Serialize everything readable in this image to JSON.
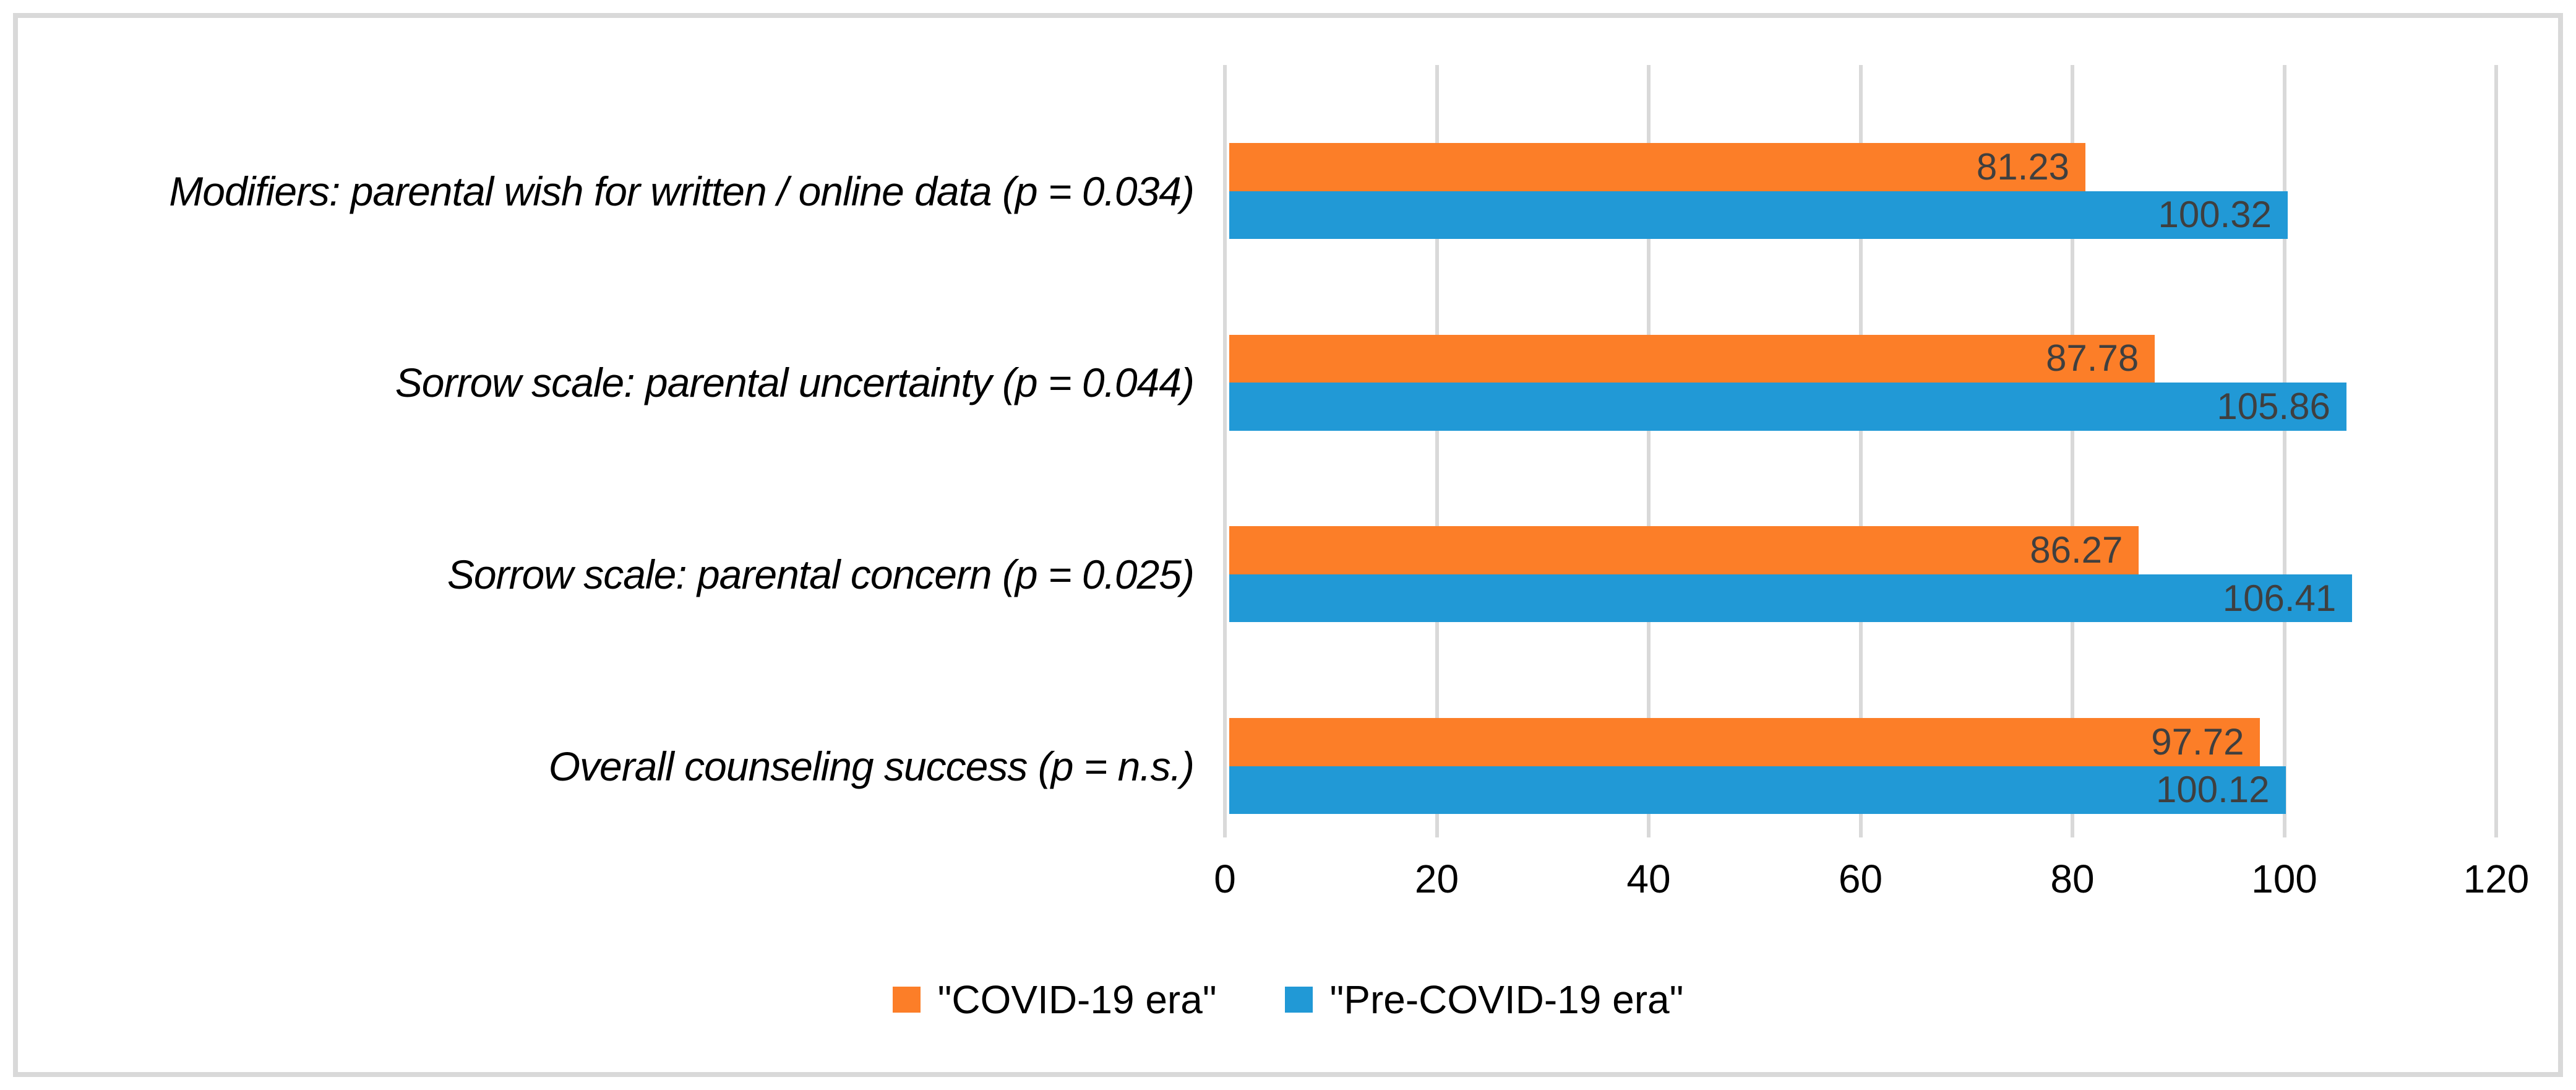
{
  "chart_data": {
    "type": "bar",
    "orientation": "horizontal",
    "title": "",
    "categories": [
      "Modifiers: parental wish for written / online data (p = 0.034)",
      "Sorrow scale: parental uncertainty (p = 0.044)",
      "Sorrow scale: parental concern (p = 0.025)",
      "Overall counseling success (p = n.s.)"
    ],
    "series": [
      {
        "name": "\"COVID-19 era\"",
        "color": "#FC7E28",
        "values": [
          81.23,
          87.78,
          86.27,
          97.72
        ]
      },
      {
        "name": "\"Pre-COVID-19 era\"",
        "color": "#2199D6",
        "values": [
          100.32,
          105.86,
          106.41,
          100.12
        ]
      }
    ],
    "xlim": [
      0,
      120
    ],
    "xticks": [
      0,
      20,
      40,
      60,
      80,
      100,
      120
    ],
    "grid": "vertical",
    "legend_position": "bottom",
    "value_labels": "inside-end",
    "value_label_decimals": 2
  },
  "colors": {
    "series_covid": "#FC7E28",
    "series_precovid": "#2199D6",
    "gridline": "#D9D9D9",
    "frame_border": "#D9D9D9",
    "value_label_text": "#3F3F3F",
    "axis_text": "#000000"
  }
}
